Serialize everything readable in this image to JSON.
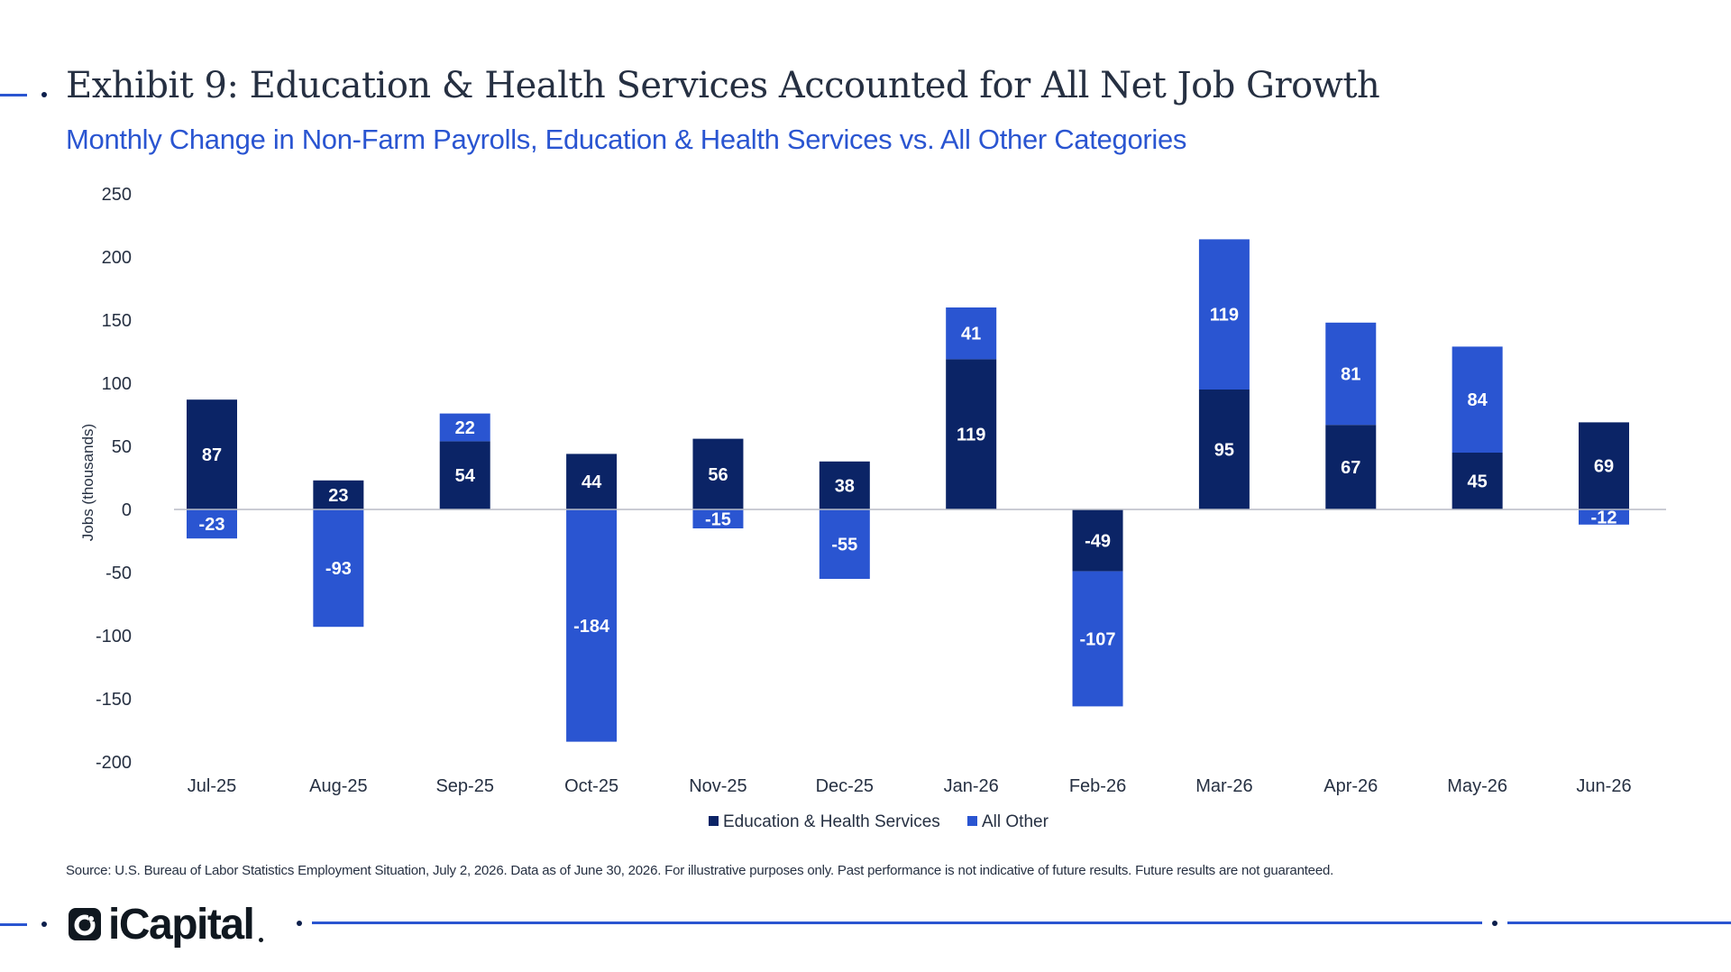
{
  "title": "Exhibit 9: Education & Health Services Accounted for All Net Job Growth",
  "subtitle": "Monthly Change in Non-Farm Payrolls, Education & Health Services vs. All Other Categories",
  "source": "Source: U.S. Bureau of Labor Statistics Employment Situation, July 2, 2026. Data as of June 30, 2026. For illustrative purposes only. Past performance is not indicative of future results. Future results are not guaranteed.",
  "logo_text": "iCapital",
  "colors": {
    "education": "#0b2466",
    "other": "#2a55d1",
    "accent": "#2a55d1"
  },
  "chart_data": {
    "type": "bar",
    "stacked": true,
    "categories": [
      "Jul-25",
      "Aug-25",
      "Sep-25",
      "Oct-25",
      "Nov-25",
      "Dec-25",
      "Jan-26",
      "Feb-26",
      "Mar-26",
      "Apr-26",
      "May-26",
      "Jun-26"
    ],
    "series": [
      {
        "name": "Education & Health Services",
        "values": [
          87,
          23,
          54,
          44,
          56,
          38,
          119,
          -49,
          95,
          67,
          45,
          69
        ]
      },
      {
        "name": "All Other",
        "values": [
          -23,
          -93,
          22,
          -184,
          -15,
          -55,
          41,
          -107,
          119,
          81,
          84,
          -12
        ]
      }
    ],
    "ylabel": "Jobs (thousands)",
    "ylim": [
      -200,
      250
    ],
    "yticks": [
      250,
      200,
      150,
      100,
      50,
      0,
      -50,
      -100,
      -150,
      -200
    ],
    "legend": "bottom",
    "grid": false
  }
}
